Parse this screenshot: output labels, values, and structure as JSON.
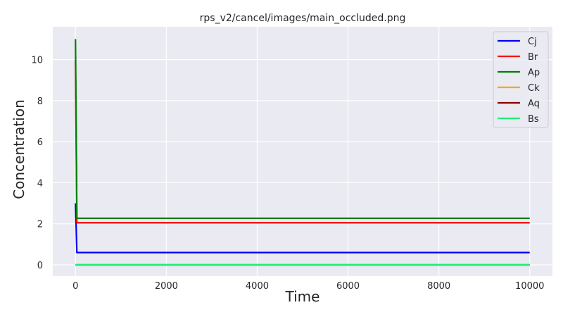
{
  "chart_data": {
    "type": "line",
    "title": "rps_v2/cancel/images/main_occluded.png",
    "xlabel": "Time",
    "ylabel": "Concentration",
    "xlim": [
      -500,
      10500
    ],
    "ylim": [
      -0.55,
      11.6
    ],
    "xticks": [
      0,
      2000,
      4000,
      6000,
      8000,
      10000
    ],
    "yticks": [
      0,
      2,
      4,
      6,
      8,
      10
    ],
    "grid": true,
    "legend": "top-right",
    "series": [
      {
        "name": "Cj",
        "color": "#0000ff",
        "x": [
          0,
          30,
          10000
        ],
        "y": [
          3.0,
          0.6,
          0.6
        ]
      },
      {
        "name": "Br",
        "color": "#ff0000",
        "x": [
          0,
          30,
          10000
        ],
        "y": [
          10.0,
          2.05,
          2.05
        ]
      },
      {
        "name": "Ap",
        "color": "#008000",
        "x": [
          0,
          30,
          10000
        ],
        "y": [
          11.0,
          2.27,
          2.27
        ]
      },
      {
        "name": "Ck",
        "color": "#ffa500",
        "x": [
          0,
          10000
        ],
        "y": [
          0.0,
          0.0
        ]
      },
      {
        "name": "Aq",
        "color": "#8b0000",
        "x": [
          0,
          10000
        ],
        "y": [
          0.0,
          0.0
        ]
      },
      {
        "name": "Bs",
        "color": "#22ee77",
        "x": [
          0,
          10000
        ],
        "y": [
          0.0,
          0.0
        ]
      }
    ]
  }
}
